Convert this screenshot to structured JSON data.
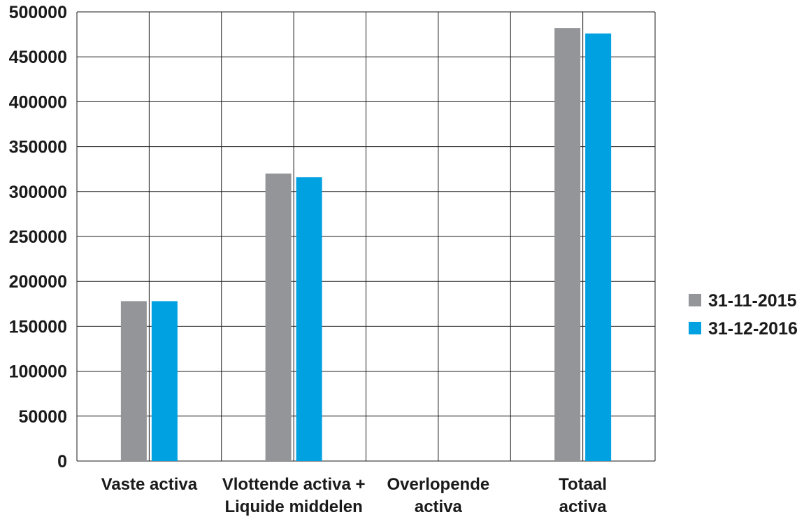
{
  "chart_data": {
    "type": "bar",
    "title": "",
    "xlabel": "",
    "ylabel": "",
    "categories": [
      [
        "Vaste activa"
      ],
      [
        "Vlottende activa +",
        "Liquide middelen"
      ],
      [
        "Overlopende",
        "activa"
      ],
      [
        "Totaal",
        "activa"
      ]
    ],
    "series": [
      {
        "name": "31-11-2015",
        "color": "#939598",
        "values": [
          178000,
          320000,
          0,
          482000
        ]
      },
      {
        "name": "31-12-2016",
        "color": "#00a1e0",
        "values": [
          178000,
          316000,
          0,
          476000
        ]
      }
    ],
    "ylim": [
      0,
      500000
    ],
    "yticks": [
      0,
      50000,
      100000,
      150000,
      200000,
      250000,
      300000,
      350000,
      400000,
      450000,
      500000
    ],
    "ytick_labels": [
      "0",
      "50000",
      "100000",
      "150000",
      "200000",
      "250000",
      "300000",
      "350000",
      "400000",
      "450000",
      "500000"
    ],
    "grid": true,
    "legend_position": "right"
  }
}
